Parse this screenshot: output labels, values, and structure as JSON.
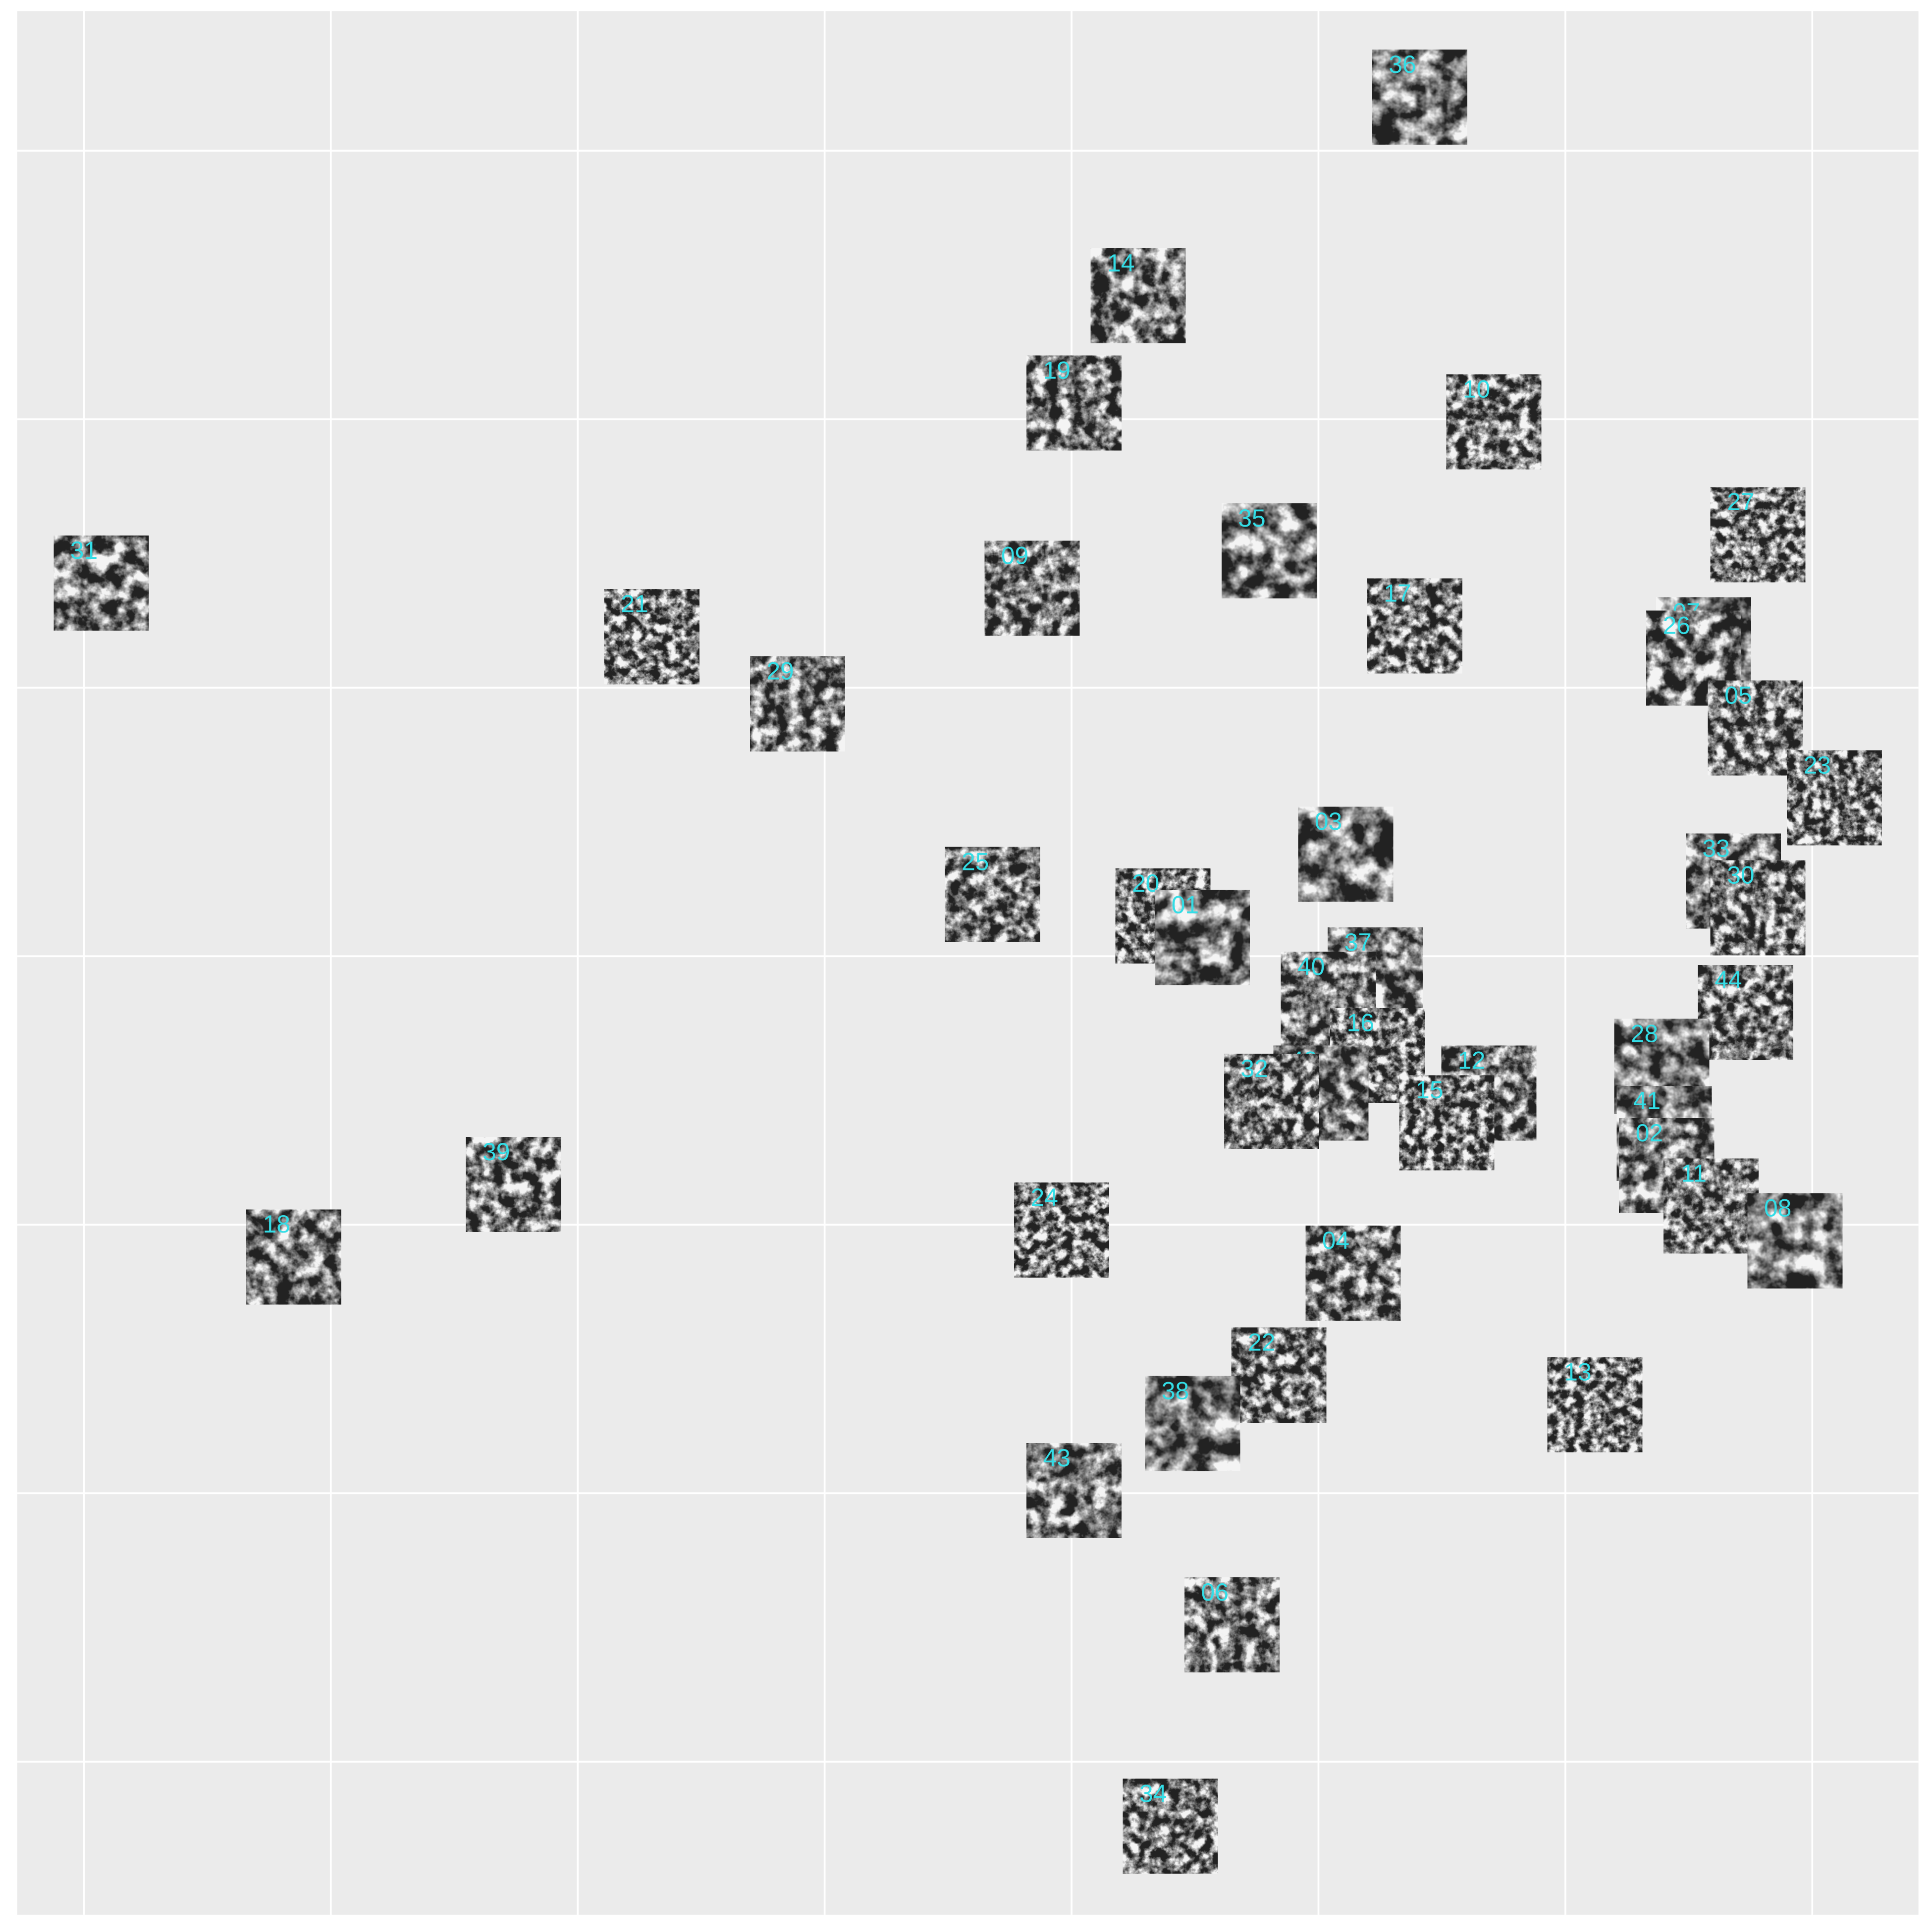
{
  "chart_data": {
    "type": "scatter",
    "labels": [
      "36",
      "14",
      "19",
      "10",
      "27",
      "35",
      "31",
      "09",
      "17",
      "21",
      "07",
      "26",
      "29",
      "05",
      "23",
      "03",
      "33",
      "25",
      "30",
      "20",
      "01",
      "37",
      "40",
      "44",
      "16",
      "28",
      "42",
      "12",
      "32",
      "15",
      "41",
      "02",
      "39",
      "11",
      "24",
      "08",
      "18",
      "04",
      "22",
      "13",
      "38",
      "43",
      "06",
      "34"
    ],
    "x": [
      5.41,
      4.27,
      4.01,
      5.71,
      6.78,
      4.8,
      0.07,
      3.84,
      5.39,
      2.3,
      6.56,
      6.52,
      2.89,
      6.77,
      7.09,
      5.11,
      6.68,
      3.68,
      6.78,
      4.37,
      4.53,
      5.23,
      5.04,
      6.73,
      5.24,
      6.39,
      5.01,
      5.69,
      4.81,
      5.52,
      6.4,
      6.41,
      1.74,
      6.59,
      3.96,
      6.93,
      0.85,
      5.14,
      4.84,
      6.12,
      4.49,
      4.01,
      4.65,
      4.4
    ],
    "y": [
      6.2,
      5.46,
      5.06,
      4.99,
      4.57,
      4.51,
      4.39,
      4.37,
      4.23,
      4.19,
      4.16,
      4.11,
      3.94,
      3.85,
      3.59,
      3.38,
      3.28,
      3.23,
      3.18,
      3.15,
      3.07,
      2.93,
      2.84,
      2.79,
      2.63,
      2.59,
      2.49,
      2.49,
      2.46,
      2.38,
      2.34,
      2.22,
      2.15,
      2.07,
      1.98,
      1.94,
      1.88,
      1.82,
      1.44,
      1.33,
      1.26,
      1.01,
      0.51,
      -0.24
    ],
    "label_color": "#33dde6",
    "xlim": [
      -0.27,
      7.43
    ],
    "ylim": [
      -0.57,
      6.52
    ],
    "xticks": [
      0,
      1,
      2,
      3,
      4,
      5,
      6,
      7
    ],
    "yticks": [
      0,
      1,
      2,
      3,
      4,
      5,
      6
    ],
    "grid": true
  }
}
